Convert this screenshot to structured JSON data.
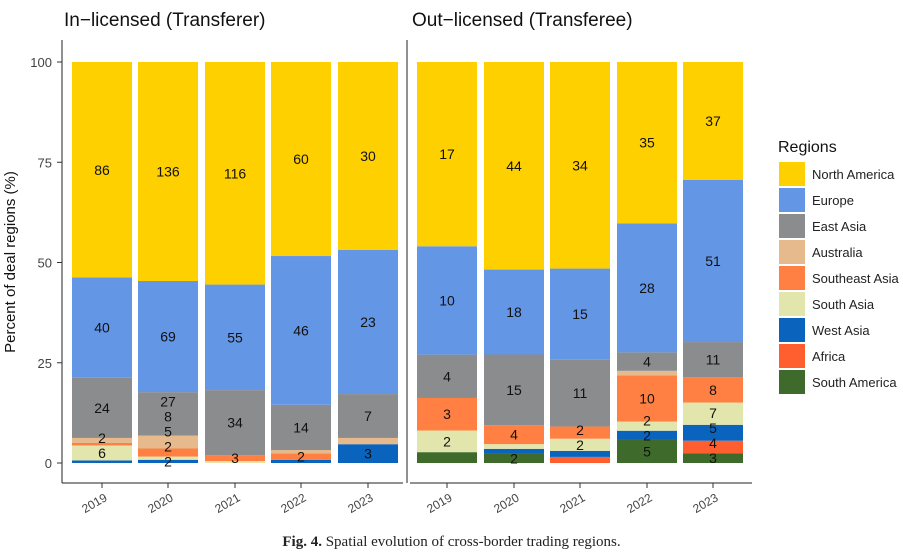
{
  "chart_data": {
    "type": "bar",
    "stacked": "percent",
    "ylabel": "Percent of deal regions (%)",
    "ylim": [
      0,
      100
    ],
    "yticks": [
      0,
      25,
      50,
      75,
      100
    ],
    "categories": [
      "2019",
      "2020",
      "2021",
      "2022",
      "2023"
    ],
    "legend": {
      "title": "Regions",
      "placement": "right",
      "entries": [
        "North America",
        "Europe",
        "East Asia",
        "Australia",
        "Southeast Asia",
        "South Asia",
        "West Asia",
        "Africa",
        "South America"
      ]
    },
    "colors": {
      "North America": "#FFD000",
      "Europe": "#6496E6",
      "East Asia": "#8B8C8E",
      "Australia": "#E6BA8C",
      "Southeast Asia": "#FF8042",
      "South Asia": "#E2E6AC",
      "West Asia": "#0A64BE",
      "Africa": "#FF5F2E",
      "South America": "#3E6A2C"
    },
    "panels": [
      {
        "title": "In−licensed (Transferer)",
        "series": [
          {
            "name": "North America",
            "values": [
              86,
              136,
              116,
              60,
              30
            ]
          },
          {
            "name": "Europe",
            "values": [
              40,
              69,
              55,
              46,
              23
            ]
          },
          {
            "name": "East Asia",
            "values": [
              24,
              27,
              34,
              14,
              7
            ]
          },
          {
            "name": "Australia",
            "values": [
              2,
              8,
              0,
              1,
              1
            ]
          },
          {
            "name": "Southeast Asia",
            "values": [
              1,
              5,
              3,
              2,
              0
            ]
          },
          {
            "name": "South Asia",
            "values": [
              6,
              2,
              1,
              0,
              0
            ]
          },
          {
            "name": "West Asia",
            "values": [
              1,
              2,
              0,
              1,
              3
            ]
          },
          {
            "name": "Africa",
            "values": [
              0,
              0,
              0,
              0,
              0
            ]
          },
          {
            "name": "South America",
            "values": [
              0,
              0,
              0,
              0,
              0
            ]
          }
        ]
      },
      {
        "title": "Out−licensed (Transferee)",
        "series": [
          {
            "name": "North America",
            "values": [
              17,
              44,
              34,
              35,
              37
            ]
          },
          {
            "name": "Europe",
            "values": [
              10,
              18,
              15,
              28,
              51
            ]
          },
          {
            "name": "East Asia",
            "values": [
              4,
              15,
              11,
              4,
              11
            ]
          },
          {
            "name": "Australia",
            "values": [
              0,
              0,
              0,
              1,
              0
            ]
          },
          {
            "name": "Southeast Asia",
            "values": [
              3,
              4,
              2,
              10,
              8
            ]
          },
          {
            "name": "South Asia",
            "values": [
              2,
              1,
              2,
              2,
              7
            ]
          },
          {
            "name": "West Asia",
            "values": [
              0,
              1,
              1,
              2,
              5
            ]
          },
          {
            "name": "Africa",
            "values": [
              0,
              0,
              1,
              0,
              4
            ]
          },
          {
            "name": "South America",
            "values": [
              1,
              2,
              0,
              5,
              3
            ]
          }
        ]
      }
    ]
  },
  "caption": {
    "label": "Fig. 4.",
    "text": " Spatial evolution of cross-border trading regions."
  }
}
